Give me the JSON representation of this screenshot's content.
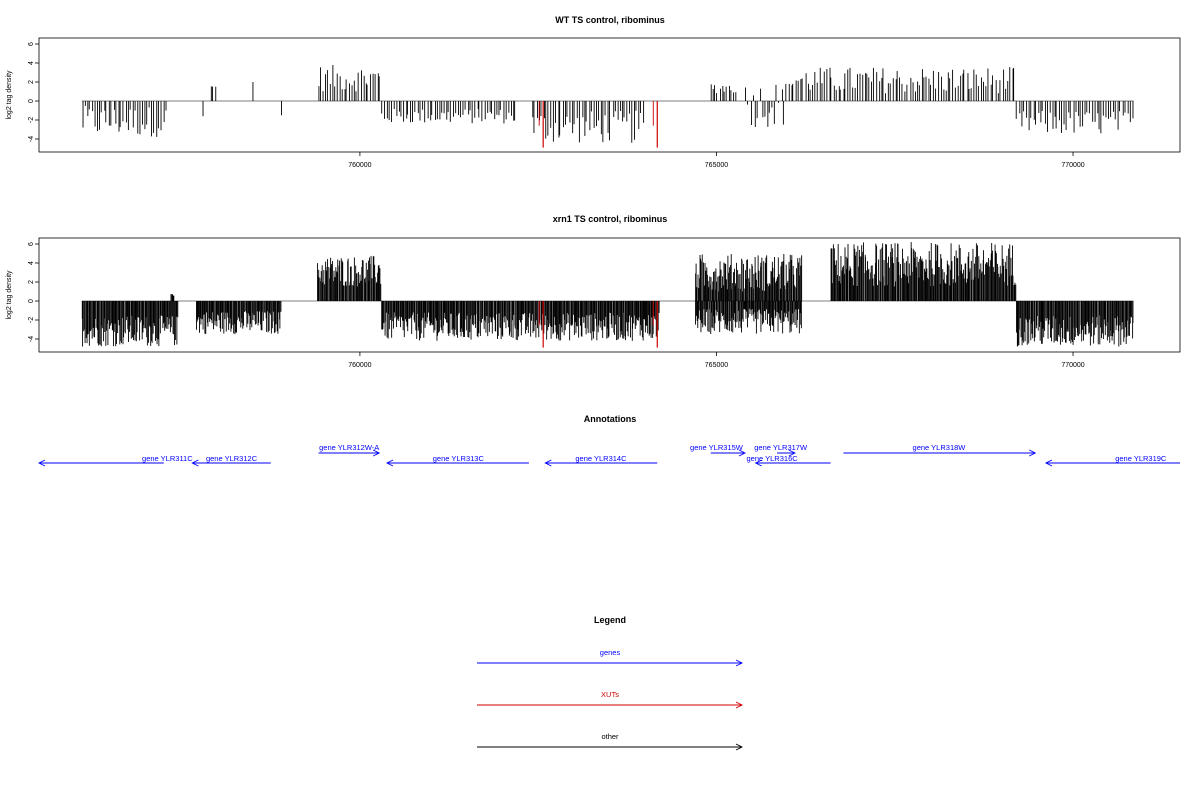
{
  "chart_data": [
    {
      "type": "bar",
      "title": "WT TS control, ribominus",
      "xlabel": "",
      "ylabel": "log2 tag density",
      "xlim": [
        755500,
        771500
      ],
      "ylim": [
        -5.2,
        6.8
      ],
      "xticks": [
        760000,
        765000,
        770000
      ],
      "xtick_labels": [
        "760000",
        "765000",
        "770000"
      ],
      "yticks": [
        -4,
        -2,
        0,
        2,
        4,
        6
      ],
      "ytick_labels": [
        "-4",
        "-2",
        "0",
        "2",
        "4",
        "6"
      ],
      "grid": false,
      "baseline": {
        "x": [
          756100,
          770850
        ],
        "y": 0
      },
      "colors": {
        "default": "#000000",
        "highlight": "#cc0000",
        "baseline": "#808080"
      },
      "segments": [
        {
          "x_start": 756100,
          "x_end": 757300,
          "y_min": -3.8,
          "y_max": -0.5
        },
        {
          "x_start": 757900,
          "x_end": 758000,
          "y_min": 1.4,
          "y_max": 1.6
        },
        {
          "x_start": 757800,
          "x_end": 757800,
          "y_min": -1.6,
          "y_max": -1.6
        },
        {
          "x_start": 758500,
          "x_end": 758500,
          "y_min": 2.0,
          "y_max": 2.0
        },
        {
          "x_start": 758900,
          "x_end": 758900,
          "y_min": -1.5,
          "y_max": -1.5
        },
        {
          "x_start": 759400,
          "x_end": 760300,
          "y_min": 1.0,
          "y_max": 3.8
        },
        {
          "x_start": 760300,
          "x_end": 762200,
          "y_min": -2.4,
          "y_max": -0.8
        },
        {
          "x_start": 762400,
          "x_end": 764000,
          "y_min": -4.5,
          "y_max": -1.0
        },
        {
          "x_start": 764900,
          "x_end": 765300,
          "y_min": 0.8,
          "y_max": 2.0
        },
        {
          "x_start": 765400,
          "x_end": 766000,
          "y_min": -2.8,
          "y_max": 2.2
        },
        {
          "x_start": 766000,
          "x_end": 769200,
          "y_min": 0.8,
          "y_max": 3.6
        },
        {
          "x_start": 769200,
          "x_end": 770850,
          "y_min": -3.6,
          "y_max": -1.0
        }
      ],
      "highlight_x": [
        762570,
        764170
      ],
      "highlight_y": -4.9
    },
    {
      "type": "bar",
      "title": "xrn1 TS control, ribominus",
      "xlabel": "",
      "ylabel": "log2 tag density",
      "xlim": [
        755500,
        771500
      ],
      "ylim": [
        -5.2,
        6.8
      ],
      "xticks": [
        760000,
        765000,
        770000
      ],
      "xtick_labels": [
        "760000",
        "765000",
        "770000"
      ],
      "yticks": [
        -4,
        -2,
        0,
        2,
        4,
        6
      ],
      "ytick_labels": [
        "-4",
        "-2",
        "0",
        "2",
        "4",
        "6"
      ],
      "grid": false,
      "baseline": {
        "x": [
          756100,
          770850
        ],
        "y": 0
      },
      "colors": {
        "default": "#000000",
        "highlight": "#cc0000",
        "baseline": "#808080"
      },
      "segments": [
        {
          "x_start": 756100,
          "x_end": 757450,
          "y_min": -4.8,
          "y_max": -1.5
        },
        {
          "x_start": 757350,
          "x_end": 757400,
          "y_min": 0.5,
          "y_max": 0.9
        },
        {
          "x_start": 757700,
          "x_end": 758900,
          "y_min": -3.5,
          "y_max": -1.0
        },
        {
          "x_start": 759400,
          "x_end": 760300,
          "y_min": 1.5,
          "y_max": 4.8
        },
        {
          "x_start": 760300,
          "x_end": 764200,
          "y_min": -4.2,
          "y_max": -1.2
        },
        {
          "x_start": 764700,
          "x_end": 766200,
          "y_min": 1.0,
          "y_max": 5.0
        },
        {
          "x_start": 764700,
          "x_end": 766200,
          "y_min": -3.5,
          "y_max": -0.8
        },
        {
          "x_start": 766600,
          "x_end": 769200,
          "y_min": 1.5,
          "y_max": 6.2
        },
        {
          "x_start": 769200,
          "x_end": 770850,
          "y_min": -4.8,
          "y_max": -1.5
        }
      ],
      "highlight_x": [
        762570,
        764170
      ],
      "highlight_y": -4.9
    }
  ],
  "annotations": {
    "title": "Annotations",
    "xlim": [
      755500,
      771500
    ],
    "genes": [
      {
        "label": "gene YLR311C",
        "x_start": 755500,
        "x_end": 757250,
        "strand": "-",
        "label_x": 757300
      },
      {
        "label": "gene YLR312C",
        "x_start": 757650,
        "x_end": 758750,
        "strand": "-",
        "label_x": 758200
      },
      {
        "label": "gene YLR312W-A",
        "x_start": 759420,
        "x_end": 760270,
        "strand": "+",
        "label_x": 759850
      },
      {
        "label": "gene YLR313C",
        "x_start": 760380,
        "x_end": 762370,
        "strand": "-",
        "label_x": 761380
      },
      {
        "label": "gene YLR314C",
        "x_start": 762600,
        "x_end": 764170,
        "strand": "-",
        "label_x": 763380
      },
      {
        "label": "gene YLR315W",
        "x_start": 764920,
        "x_end": 765400,
        "strand": "+",
        "label_x": 765000
      },
      {
        "label": "gene YLR317W",
        "x_start": 765850,
        "x_end": 766100,
        "strand": "+",
        "label_x": 765900
      },
      {
        "label": "gene YLR316C",
        "x_start": 765550,
        "x_end": 766600,
        "strand": "-",
        "label_x": 765780
      },
      {
        "label": "gene YLR318W",
        "x_start": 766780,
        "x_end": 769470,
        "strand": "+",
        "label_x": 768120
      },
      {
        "label": "gene YLR319C",
        "x_start": 769620,
        "x_end": 771500,
        "strand": "-",
        "label_x": 770950
      }
    ]
  },
  "legend": {
    "title": "Legend",
    "items": [
      {
        "label": "genes",
        "color": "#0000ff"
      },
      {
        "label": "XUTs",
        "color": "#cc0000"
      },
      {
        "label": "other",
        "color": "#000000"
      }
    ]
  }
}
